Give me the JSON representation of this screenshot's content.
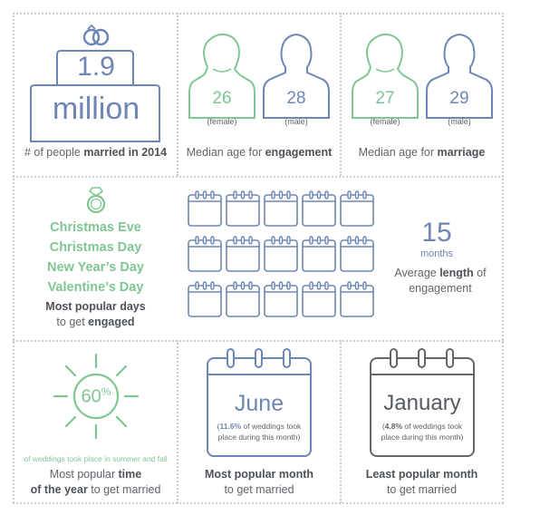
{
  "married": {
    "value_top": "1.9",
    "value_bottom": "million",
    "label_pre": "# of people ",
    "label_bold": "married in 2014",
    "icon": "rings-icon"
  },
  "engagement_age": {
    "female_age": "26",
    "male_age": "28",
    "female_label": "(female)",
    "male_label": "(male)",
    "label_pre": "Median age for ",
    "label_bold": "engagement"
  },
  "marriage_age": {
    "female_age": "27",
    "male_age": "29",
    "female_label": "(female)",
    "male_label": "(male)",
    "label_pre": "Median age for ",
    "label_bold": "marriage"
  },
  "popular_days": {
    "days": [
      "Christmas Eve",
      "Christmas Day",
      "New Year’s Day",
      "Valentine’s Day"
    ],
    "label_line1": "Most popular days",
    "label_line2_pre": "to get ",
    "label_line2_bold": "engaged",
    "icon": "diamond-ring-icon"
  },
  "engagement_length": {
    "value": "15",
    "unit": "months",
    "label_pre": "Average ",
    "label_bold": "length",
    "label_post": " of",
    "label_line2": "engagement",
    "calendar_count": 15,
    "icon": "calendar-icon"
  },
  "popular_time": {
    "percent": "60",
    "percent_sign": "%",
    "note": "of weddings took place in summer and fall",
    "label_line1_pre": "Most popular ",
    "label_line1_bold": "time",
    "label_line2_bold": "of the year",
    "label_line2_post": " to get married",
    "icon": "sun-icon"
  },
  "popular_month": {
    "month": "June",
    "note_bold": "11.6%",
    "note_line1_post": " of weddings took",
    "note_line2": "place during this month)",
    "label_line1": "Most popular month",
    "label_line2": "to get married",
    "icon": "calendar-icon"
  },
  "least_month": {
    "month": "January",
    "note_bold": "4.8%",
    "note_line1_post": " of weddings took",
    "note_line2": "place during this month)",
    "label_line1": "Least popular month",
    "label_line2": "to get married",
    "icon": "calendar-icon"
  },
  "colors": {
    "green": "#7fc693",
    "blue": "#6e86b5",
    "gray": "#555a60",
    "divider": "#c9ccd1"
  }
}
